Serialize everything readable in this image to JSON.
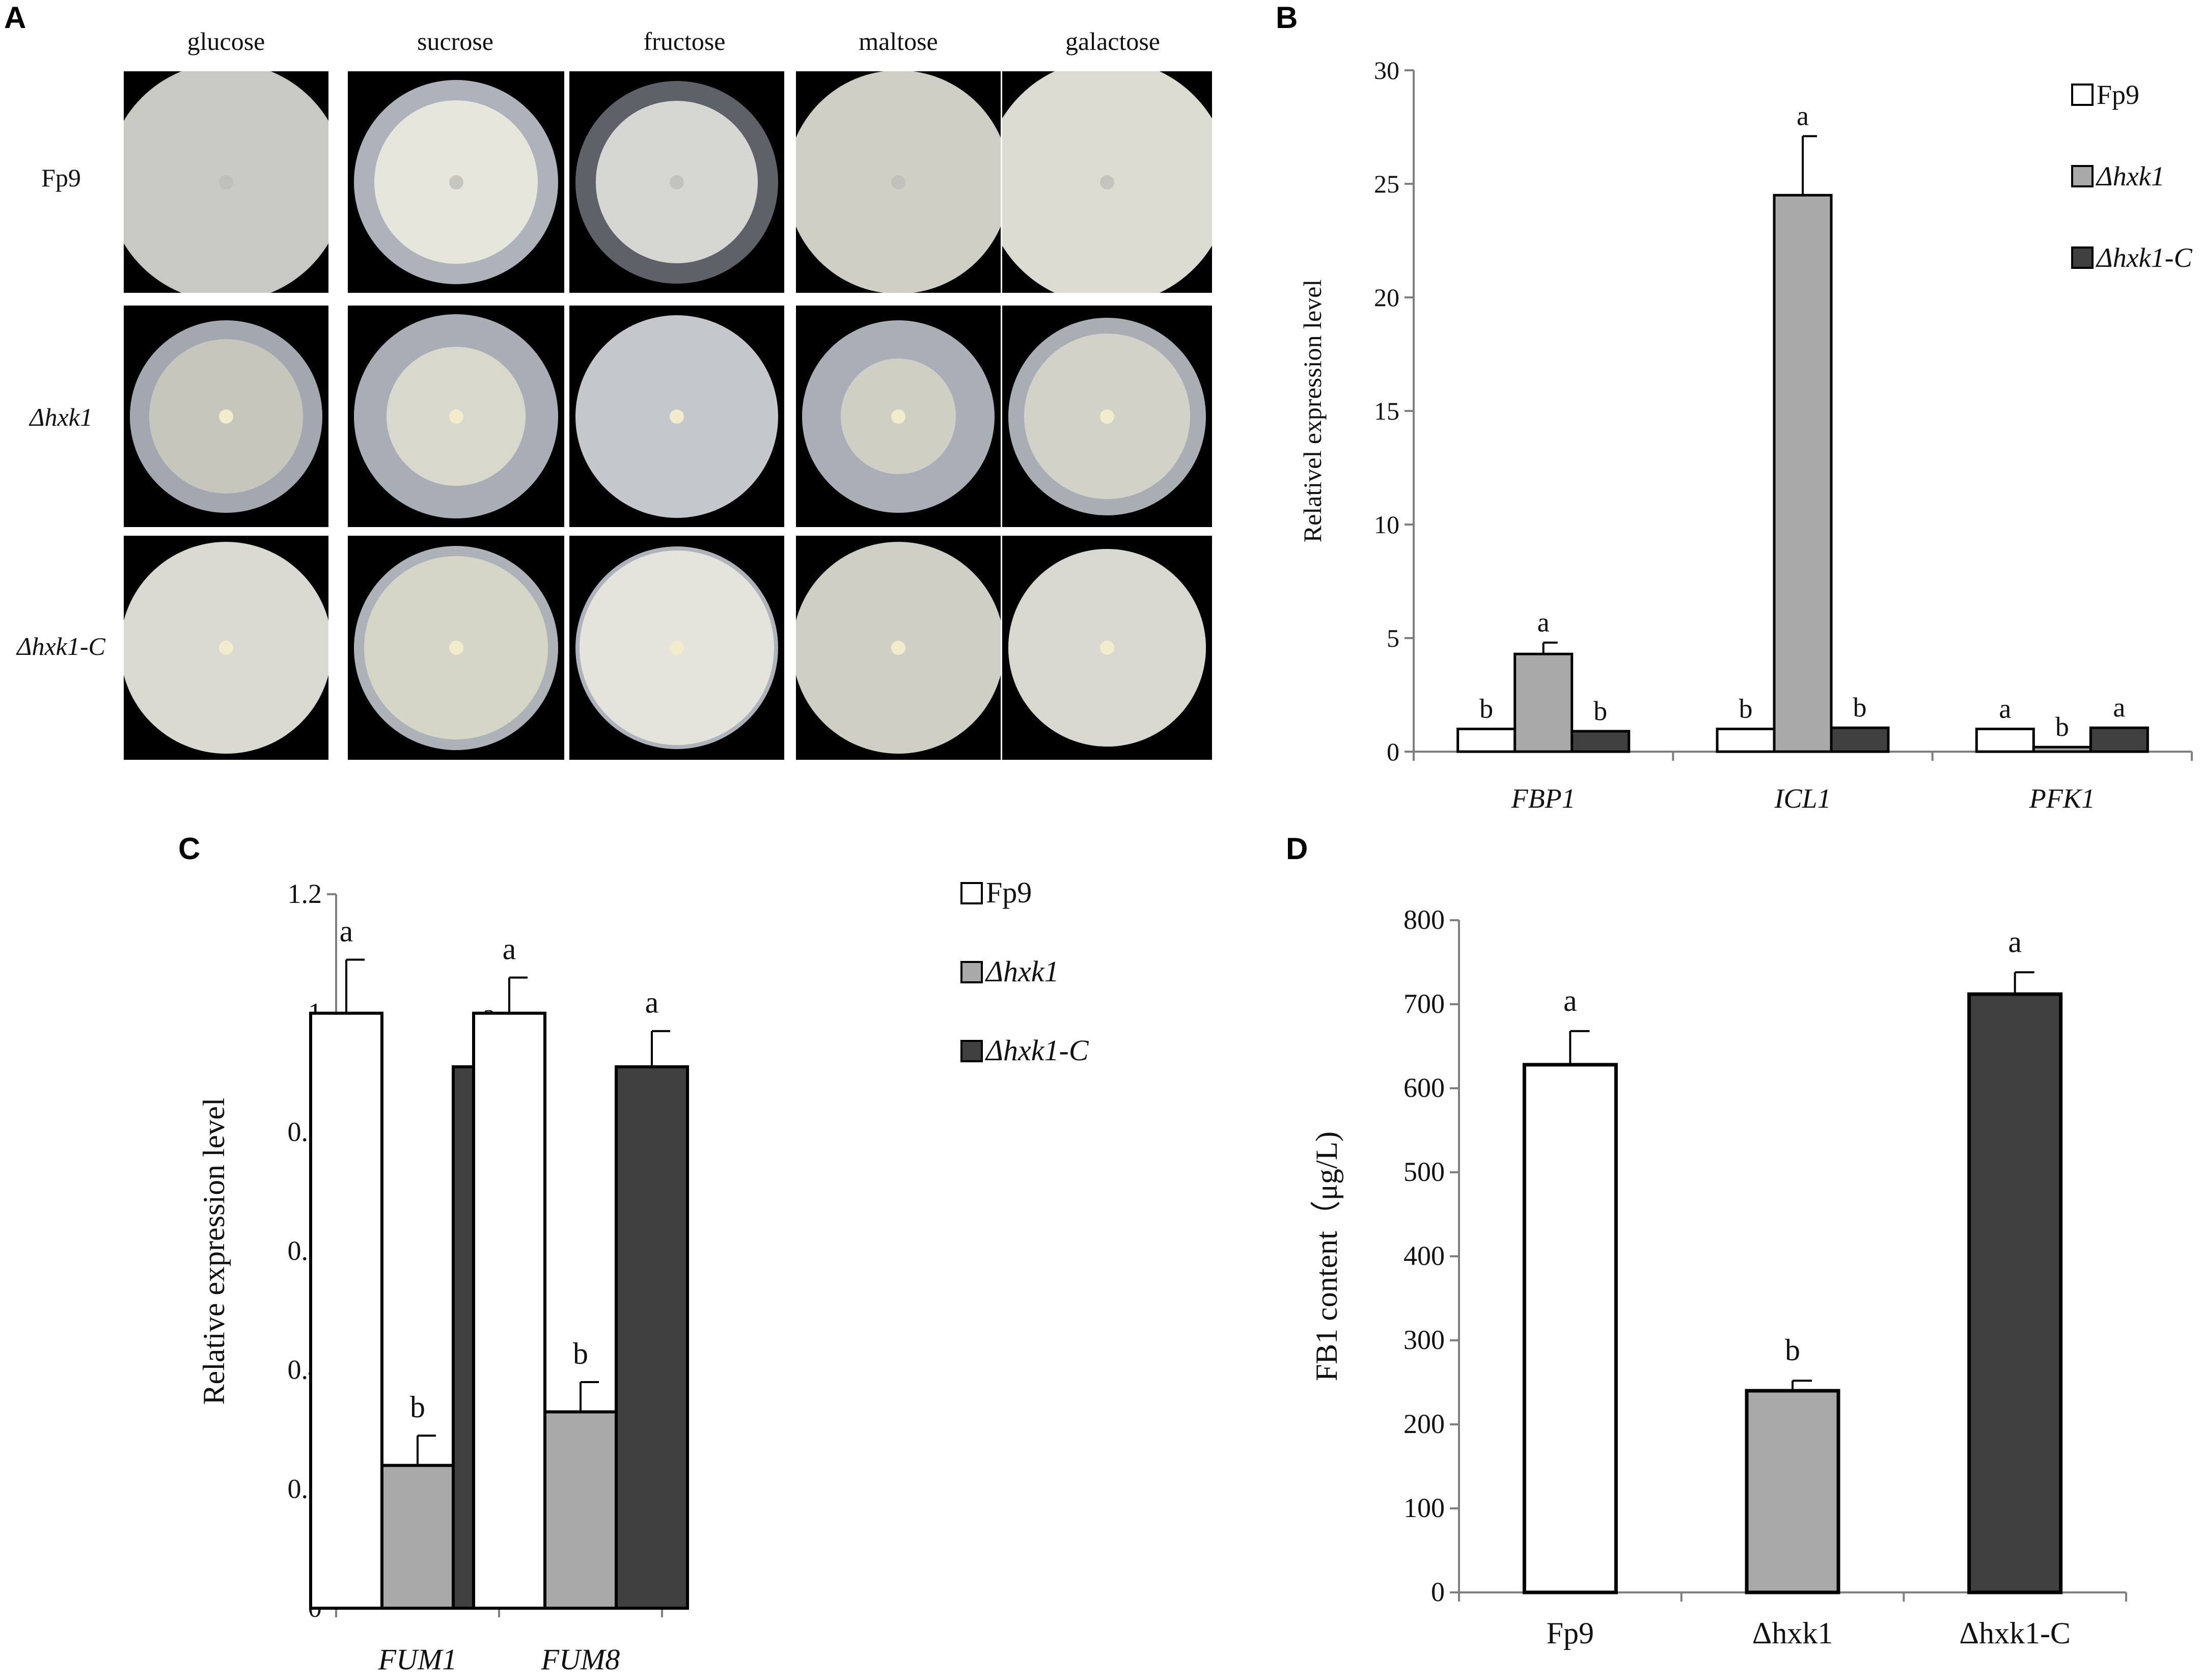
{
  "panels": {
    "a": {
      "letter": "A",
      "columns": [
        "glucose",
        "sucrose",
        "fructose",
        "maltose",
        "galactose"
      ],
      "rows": [
        {
          "label": "Fp9",
          "italic": false
        },
        {
          "label": "Δhxk1",
          "italic": true
        },
        {
          "label": "Δhxk1-C",
          "italic": true
        }
      ]
    },
    "b": {
      "letter": "B"
    },
    "c": {
      "letter": "C"
    },
    "d": {
      "letter": "D"
    }
  },
  "colors": {
    "fp9": "#ffffff",
    "dhxk1": "#a9a9a9",
    "dhxk1c": "#404040",
    "outline": "#000000"
  },
  "chart_data": [
    {
      "id": "b",
      "type": "bar",
      "ylabel": "Relativel expression level",
      "ylim": [
        0,
        30
      ],
      "yticks": [
        0,
        5,
        10,
        15,
        20,
        25,
        30
      ],
      "categories": [
        "FBP1",
        "ICL1",
        "PFK1"
      ],
      "categories_italic": true,
      "series": [
        {
          "name": "Fp9",
          "italic": false,
          "values": [
            1.0,
            1.0,
            1.0
          ],
          "errors": [
            0,
            0,
            0
          ],
          "letters": [
            "b",
            "b",
            "a"
          ]
        },
        {
          "name": "Δhxk1",
          "italic": true,
          "values": [
            4.3,
            24.5,
            0.2
          ],
          "errors": [
            0.5,
            2.6,
            0
          ],
          "letters": [
            "a",
            "a",
            "b"
          ]
        },
        {
          "name": "Δhxk1-C",
          "italic": true,
          "values": [
            0.9,
            1.05,
            1.05
          ],
          "errors": [
            0,
            0,
            0
          ],
          "letters": [
            "b",
            "b",
            "a"
          ]
        }
      ],
      "legend": "top-right"
    },
    {
      "id": "c",
      "type": "bar",
      "ylabel": "Relative expression level",
      "ylim": [
        0,
        1.2
      ],
      "yticks": [
        0,
        0.2,
        0.4,
        0.6,
        0.8,
        1,
        1.2
      ],
      "categories": [
        "FUM1",
        "FUM8"
      ],
      "categories_italic": true,
      "series": [
        {
          "name": "Fp9",
          "italic": false,
          "values": [
            1.0,
            1.0
          ],
          "errors": [
            0.09,
            0.06
          ],
          "letters": [
            "a",
            "a"
          ]
        },
        {
          "name": "Δhxk1",
          "italic": true,
          "values": [
            0.24,
            0.33
          ],
          "errors": [
            0.05,
            0.05
          ],
          "letters": [
            "b",
            "b"
          ]
        },
        {
          "name": "Δhxk1-C",
          "italic": true,
          "values": [
            0.91,
            0.91
          ],
          "errors": [
            0.04,
            0.06
          ],
          "letters": [
            "a",
            "a"
          ]
        }
      ],
      "legend": "top-right"
    },
    {
      "id": "d",
      "type": "bar",
      "ylabel": "FB1 content（μg/L)",
      "ylim": [
        0,
        800
      ],
      "yticks": [
        0,
        100,
        200,
        300,
        400,
        500,
        600,
        700,
        800
      ],
      "categories": [
        "Fp9",
        "Δhxk1",
        "Δhxk1-C"
      ],
      "categories_italic": false,
      "values": [
        628,
        240,
        712
      ],
      "errors": [
        40,
        12,
        26
      ],
      "letters": [
        "a",
        "b",
        "a"
      ]
    }
  ]
}
